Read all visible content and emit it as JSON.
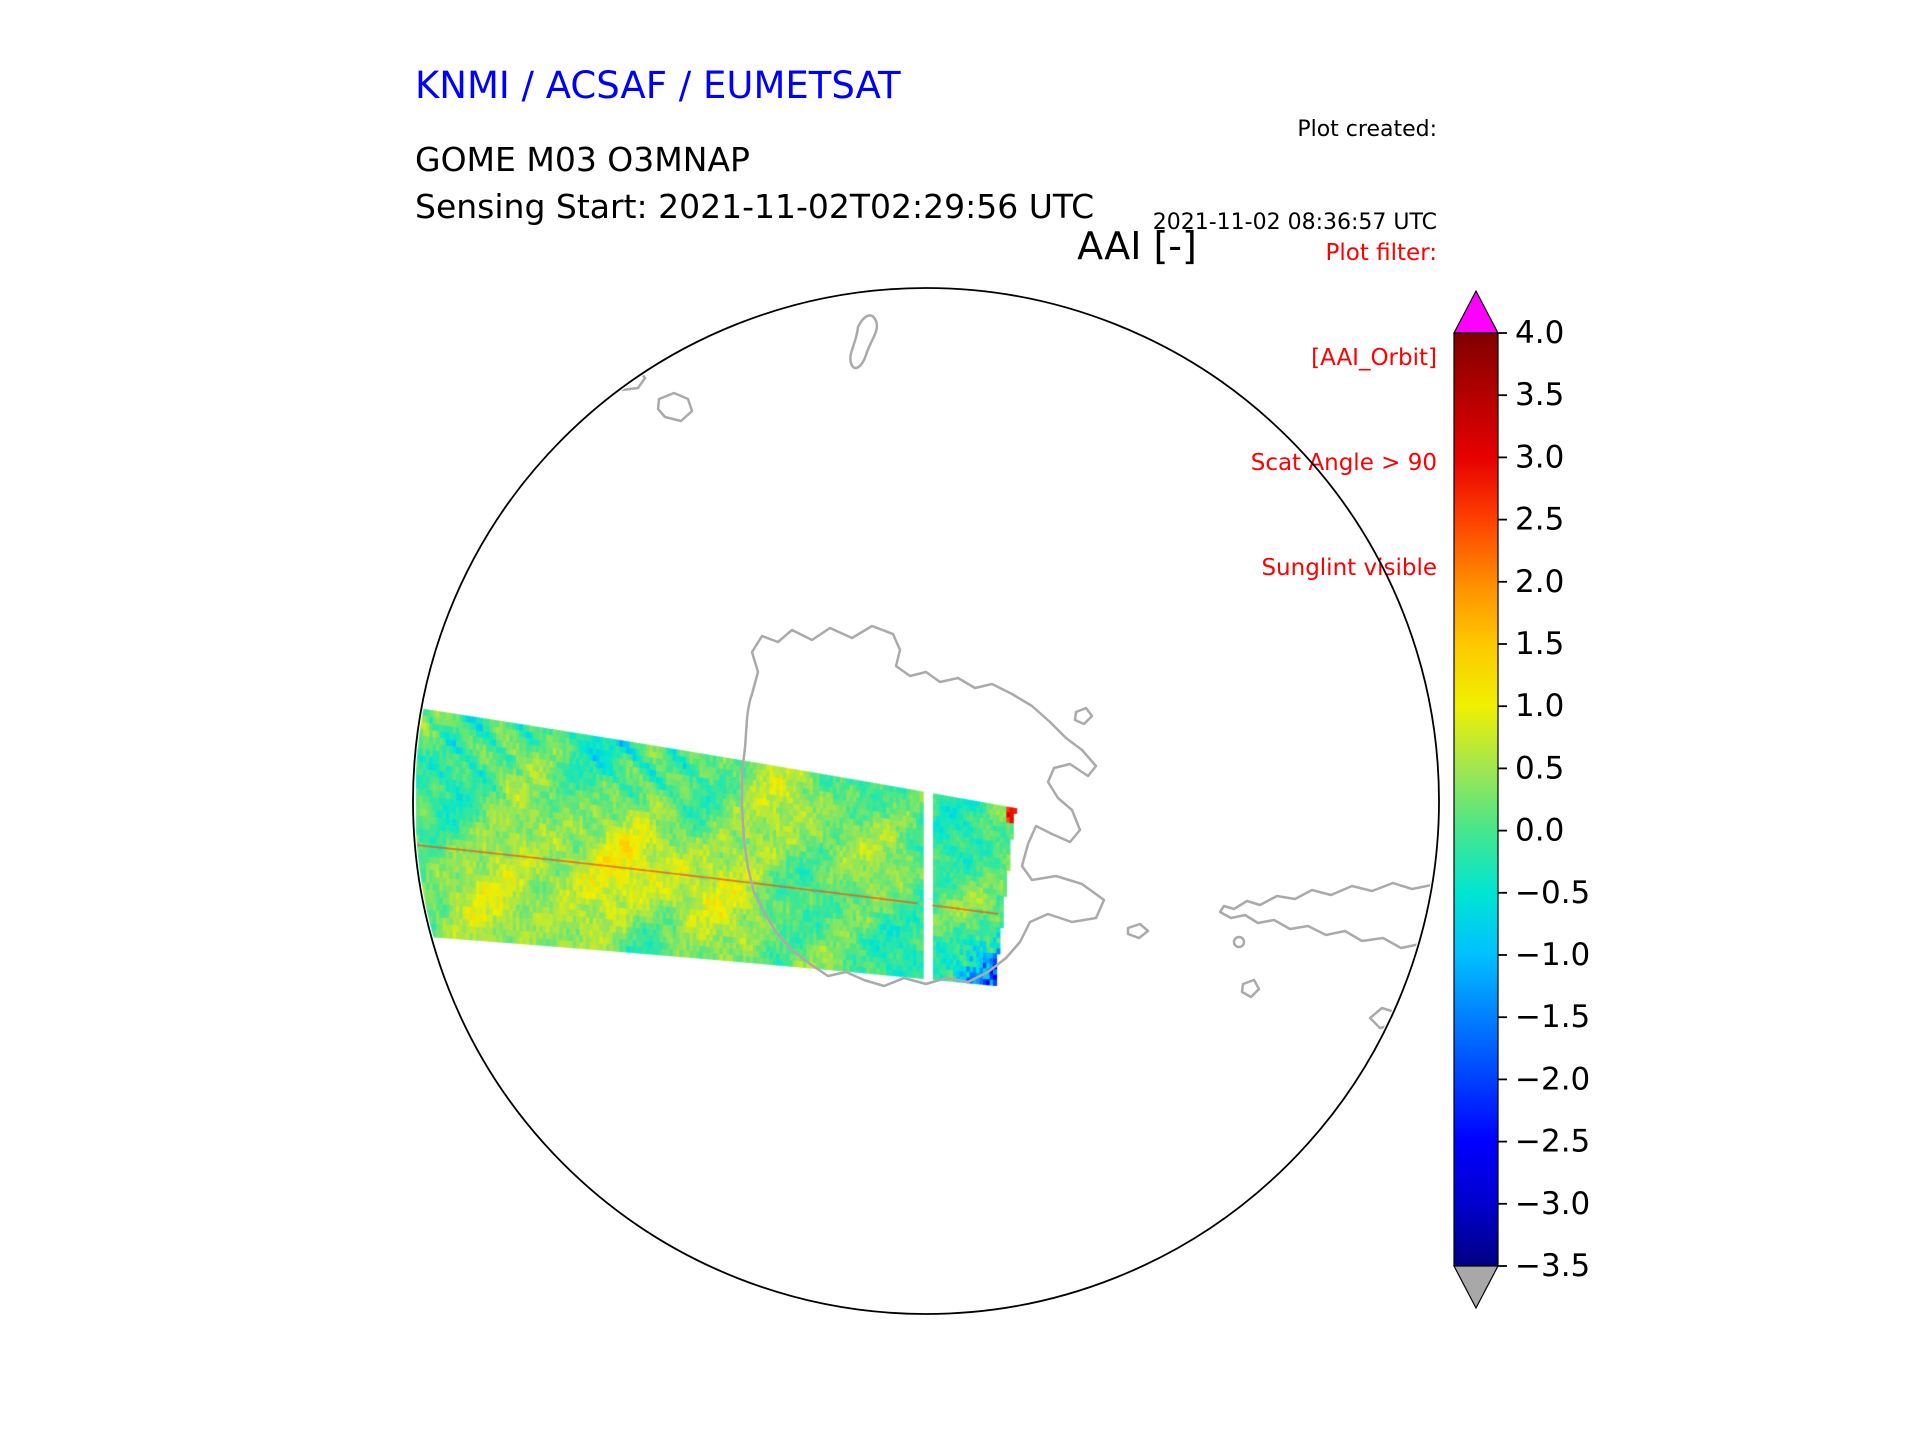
{
  "header": {
    "org_title": "KNMI / ACSAF / EUMETSAT",
    "created_label": "Plot created:",
    "created_time": "2021-11-02 08:36:57 UTC",
    "product": "GOME M03 O3MNAP",
    "sensing_start": "Sensing Start: 2021-11-02T02:29:56 UTC",
    "map_title": "AAI [-]"
  },
  "plot_filter": {
    "label": "Plot filter:",
    "lines": [
      "[AAI_Orbit]",
      "Scat Angle > 90",
      "Sunglint visible"
    ],
    "color": "#ff0000"
  },
  "colors": {
    "title_blue": "#0000ff",
    "coastline_gray": "#aaaaaa",
    "map_outline": "#000000",
    "swath_gap": "#ffffff"
  },
  "colorbar": {
    "vmin": -3.5,
    "vmax": 4.0,
    "ticks": [
      "4.0",
      "3.5",
      "3.0",
      "2.5",
      "2.0",
      "1.5",
      "1.0",
      "0.5",
      "0.0",
      "−0.5",
      "−1.0",
      "−1.5",
      "−2.0",
      "−2.5",
      "−3.0",
      "−3.5"
    ],
    "over_color": "#ff00ff",
    "under_color": "#a8a8a8",
    "colormap": [
      {
        "v": -3.5,
        "c": "#000082"
      },
      {
        "v": -3.0,
        "c": "#0000cd"
      },
      {
        "v": -2.5,
        "c": "#0000ff"
      },
      {
        "v": -2.0,
        "c": "#0040ff"
      },
      {
        "v": -1.5,
        "c": "#0080ff"
      },
      {
        "v": -1.0,
        "c": "#00c0ff"
      },
      {
        "v": -0.5,
        "c": "#00e6d2"
      },
      {
        "v": 0.0,
        "c": "#46e68c"
      },
      {
        "v": 0.5,
        "c": "#a0e650"
      },
      {
        "v": 1.0,
        "c": "#f0f000"
      },
      {
        "v": 1.5,
        "c": "#ffc800"
      },
      {
        "v": 2.0,
        "c": "#ff8c00"
      },
      {
        "v": 2.5,
        "c": "#ff4000"
      },
      {
        "v": 3.0,
        "c": "#e60000"
      },
      {
        "v": 3.5,
        "c": "#b40000"
      },
      {
        "v": 4.0,
        "c": "#800000"
      }
    ]
  },
  "chart_data": {
    "type": "heatmap",
    "title": "AAI [-]",
    "subtitle": "GOME M03 O3MNAP",
    "sensing_start": "2021-11-02T02:29:56 UTC",
    "plot_created": "2021-11-02 08:36:57 UTC",
    "projection": "orthographic south-polar disc showing Antarctica, the Antarctic Peninsula and southern South America coastlines",
    "grid": false,
    "legend_position": "right colorbar with extend arrows (magenta over, gray under)",
    "colorbar_ticks": [
      4.0,
      3.5,
      3.0,
      2.5,
      2.0,
      1.5,
      1.0,
      0.5,
      0.0,
      -0.5,
      -1.0,
      -1.5,
      -2.0,
      -2.5,
      -3.0,
      -3.5
    ],
    "value_range": [
      -3.5,
      4.0
    ],
    "series": [
      {
        "name": "AAI orbit swath",
        "description": "Single GOME-2 (Metop) orbit swath crossing the left half of the disc from the western limb toward the Antarctic Peninsula, with a narrow white data gap near its right end",
        "typical_value_range": [
          -1.5,
          1.5
        ],
        "regions": [
          {
            "region": "upper-left diagonal streaks",
            "approx_aai": -1.0
          },
          {
            "region": "lower-left / center-left patches",
            "approx_aai": 0.9
          },
          {
            "region": "central swath background",
            "approx_aai": 0.0
          },
          {
            "region": "thin line along swath middle",
            "approx_aai": 1.8
          },
          {
            "region": "swath right end, bottom edge speckles",
            "approx_aai": -2.5
          },
          {
            "region": "swath right end, top corner spot",
            "approx_aai": 2.5
          }
        ]
      }
    ]
  }
}
